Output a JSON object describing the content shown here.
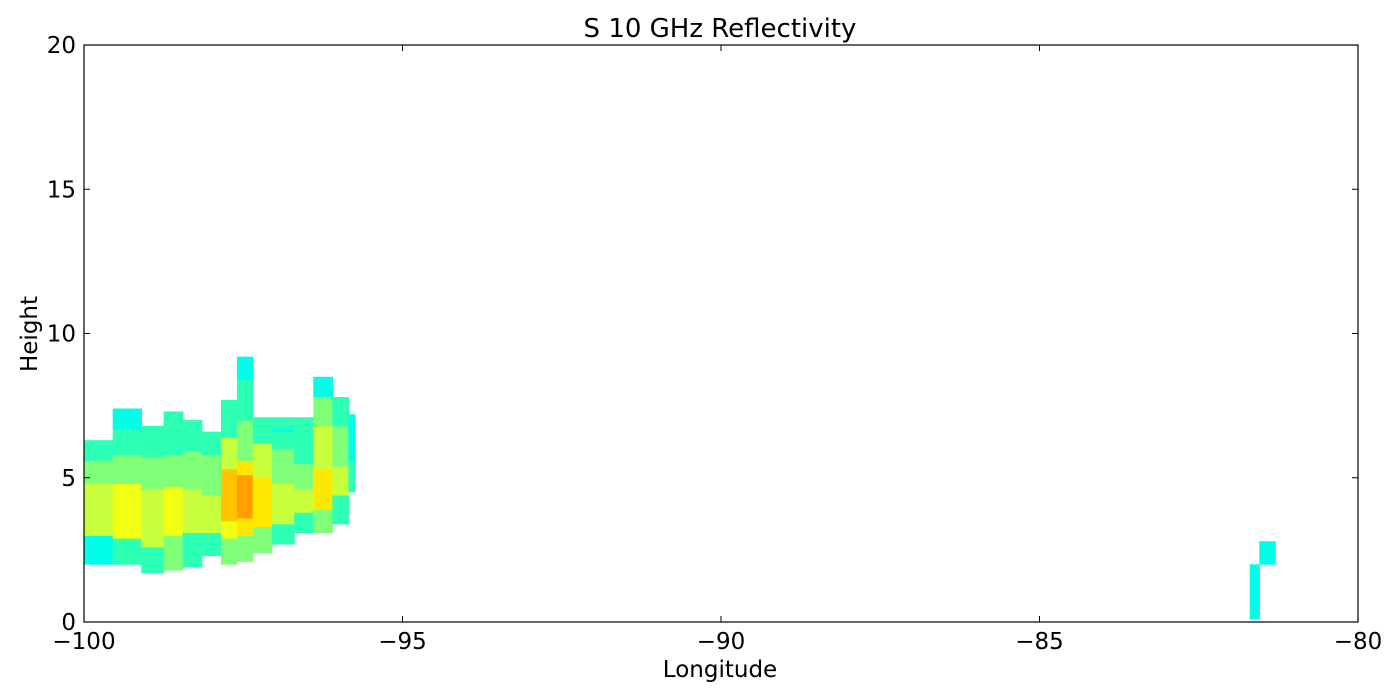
{
  "chart_data": {
    "type": "heatmap",
    "title": "S 10 GHz Reflectivity",
    "xlabel": "Longitude",
    "ylabel": "Height",
    "xlim": [
      -100,
      -80
    ],
    "ylim": [
      0,
      20
    ],
    "xticks": [
      -100,
      -95,
      -90,
      -85,
      -80
    ],
    "xtick_labels": [
      "−100",
      "−95",
      "−90",
      "−85",
      "−80"
    ],
    "yticks": [
      0,
      5,
      10,
      15,
      20
    ],
    "ytick_labels": [
      "0",
      "5",
      "10",
      "15",
      "20"
    ],
    "grid": false,
    "colormap": [
      "#00ffe6",
      "#2dffb4",
      "#80ff78",
      "#c8ff3c",
      "#f0ff14",
      "#ffe800",
      "#ffc400",
      "#ffa000"
    ],
    "columns": [
      {
        "x0": -100.0,
        "x1": -99.55,
        "layers": [
          [
            2.0,
            3.0,
            0
          ],
          [
            3.0,
            4.8,
            3
          ],
          [
            4.8,
            5.6,
            2
          ],
          [
            5.6,
            6.3,
            1
          ]
        ]
      },
      {
        "x0": -99.55,
        "x1": -99.1,
        "layers": [
          [
            2.0,
            2.9,
            1
          ],
          [
            2.9,
            4.8,
            4
          ],
          [
            4.8,
            5.8,
            2
          ],
          [
            5.8,
            6.7,
            1
          ],
          [
            6.7,
            7.4,
            0
          ]
        ]
      },
      {
        "x0": -99.1,
        "x1": -98.75,
        "layers": [
          [
            1.7,
            2.6,
            1
          ],
          [
            2.6,
            4.6,
            3
          ],
          [
            4.6,
            5.7,
            2
          ],
          [
            5.7,
            6.8,
            1
          ]
        ]
      },
      {
        "x0": -98.75,
        "x1": -98.45,
        "layers": [
          [
            1.8,
            3.0,
            2
          ],
          [
            3.0,
            4.7,
            4
          ],
          [
            4.7,
            5.8,
            2
          ],
          [
            5.8,
            7.3,
            1
          ]
        ]
      },
      {
        "x0": -98.45,
        "x1": -98.15,
        "layers": [
          [
            1.9,
            3.1,
            1
          ],
          [
            3.1,
            4.6,
            3
          ],
          [
            4.6,
            5.9,
            2
          ],
          [
            5.9,
            7.0,
            1
          ]
        ]
      },
      {
        "x0": -98.15,
        "x1": -97.85,
        "layers": [
          [
            2.3,
            3.1,
            1
          ],
          [
            3.1,
            4.4,
            3
          ],
          [
            4.4,
            5.8,
            2
          ],
          [
            5.8,
            6.6,
            1
          ]
        ]
      },
      {
        "x0": -97.85,
        "x1": -97.6,
        "layers": [
          [
            2.0,
            2.9,
            2
          ],
          [
            2.9,
            3.5,
            4
          ],
          [
            3.5,
            5.3,
            6
          ],
          [
            5.3,
            6.4,
            3
          ],
          [
            6.4,
            7.7,
            1
          ]
        ]
      },
      {
        "x0": -97.6,
        "x1": -97.35,
        "layers": [
          [
            2.1,
            3.0,
            2
          ],
          [
            3.0,
            3.6,
            5
          ],
          [
            3.6,
            5.1,
            7
          ],
          [
            5.1,
            5.6,
            5
          ],
          [
            5.6,
            7.0,
            2
          ],
          [
            7.0,
            8.4,
            1
          ],
          [
            8.4,
            9.2,
            0
          ]
        ]
      },
      {
        "x0": -97.35,
        "x1": -97.05,
        "layers": [
          [
            2.4,
            3.3,
            2
          ],
          [
            3.3,
            5.0,
            5
          ],
          [
            5.0,
            6.2,
            3
          ],
          [
            6.2,
            7.1,
            1
          ]
        ]
      },
      {
        "x0": -97.05,
        "x1": -96.7,
        "layers": [
          [
            2.7,
            3.4,
            1
          ],
          [
            3.4,
            4.8,
            3
          ],
          [
            4.8,
            6.0,
            2
          ],
          [
            6.0,
            7.1,
            1
          ],
          [
            6.6,
            6.7,
            0
          ]
        ]
      },
      {
        "x0": -96.7,
        "x1": -96.4,
        "layers": [
          [
            3.1,
            3.8,
            1
          ],
          [
            3.8,
            4.6,
            3
          ],
          [
            4.6,
            5.5,
            2
          ],
          [
            5.5,
            7.1,
            1
          ]
        ]
      },
      {
        "x0": -96.4,
        "x1": -96.1,
        "layers": [
          [
            3.1,
            3.9,
            2
          ],
          [
            3.9,
            5.3,
            5
          ],
          [
            5.3,
            6.8,
            3
          ],
          [
            6.8,
            7.8,
            2
          ],
          [
            7.8,
            8.5,
            0
          ]
        ]
      },
      {
        "x0": -96.1,
        "x1": -95.85,
        "layers": [
          [
            3.4,
            4.4,
            1
          ],
          [
            4.4,
            5.4,
            3
          ],
          [
            5.4,
            6.8,
            2
          ],
          [
            6.8,
            7.8,
            1
          ]
        ]
      },
      {
        "x0": -95.85,
        "x1": -95.75,
        "layers": [
          [
            4.5,
            5.6,
            1
          ],
          [
            5.6,
            7.2,
            0
          ]
        ]
      },
      {
        "x0": -81.7,
        "x1": -81.55,
        "layers": [
          [
            0.1,
            2.0,
            0
          ]
        ]
      },
      {
        "x0": -81.55,
        "x1": -81.3,
        "layers": [
          [
            2.0,
            2.8,
            0
          ]
        ]
      }
    ]
  }
}
